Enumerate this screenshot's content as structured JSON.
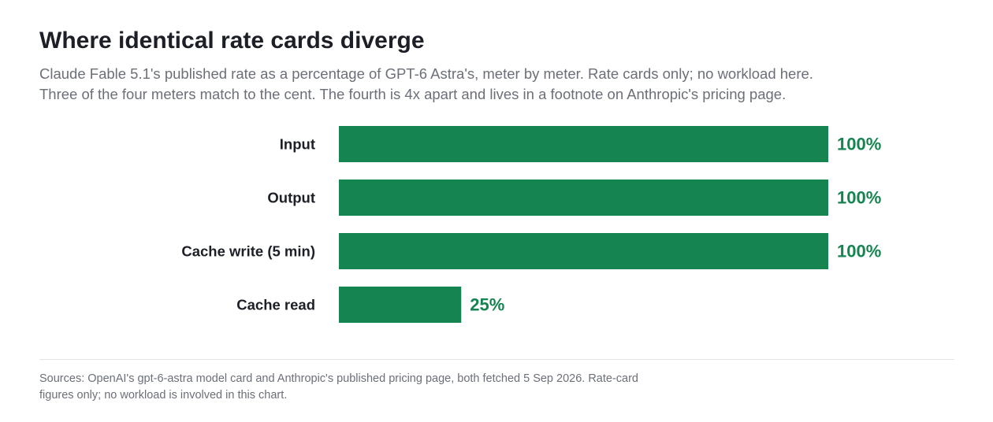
{
  "header": {
    "title": "Where identical rate cards diverge",
    "subtitle_line1": "Claude Fable 5.1's published rate as a percentage of GPT-6 Astra's, meter by meter. Rate cards only; no workload here.",
    "subtitle_line2": "Three of the four meters match to the cent. The fourth is 4x apart and lives in a footnote on Anthropic's pricing page."
  },
  "chart_data": {
    "type": "bar",
    "orientation": "horizontal",
    "categories": [
      "Input",
      "Output",
      "Cache write (5 min)",
      "Cache read"
    ],
    "values": [
      100,
      100,
      100,
      25
    ],
    "value_labels": [
      "100%",
      "100%",
      "100%",
      "25%"
    ],
    "xlim": [
      0,
      100
    ],
    "unit": "%",
    "bar_color": "#168450",
    "grid": false,
    "legend": "none"
  },
  "footer": {
    "sources_line1": "Sources: OpenAI's gpt-6-astra model card and Anthropic's published pricing page, both fetched 5 Sep 2026. Rate-card",
    "sources_line2": "figures only; no workload is involved in this chart."
  }
}
